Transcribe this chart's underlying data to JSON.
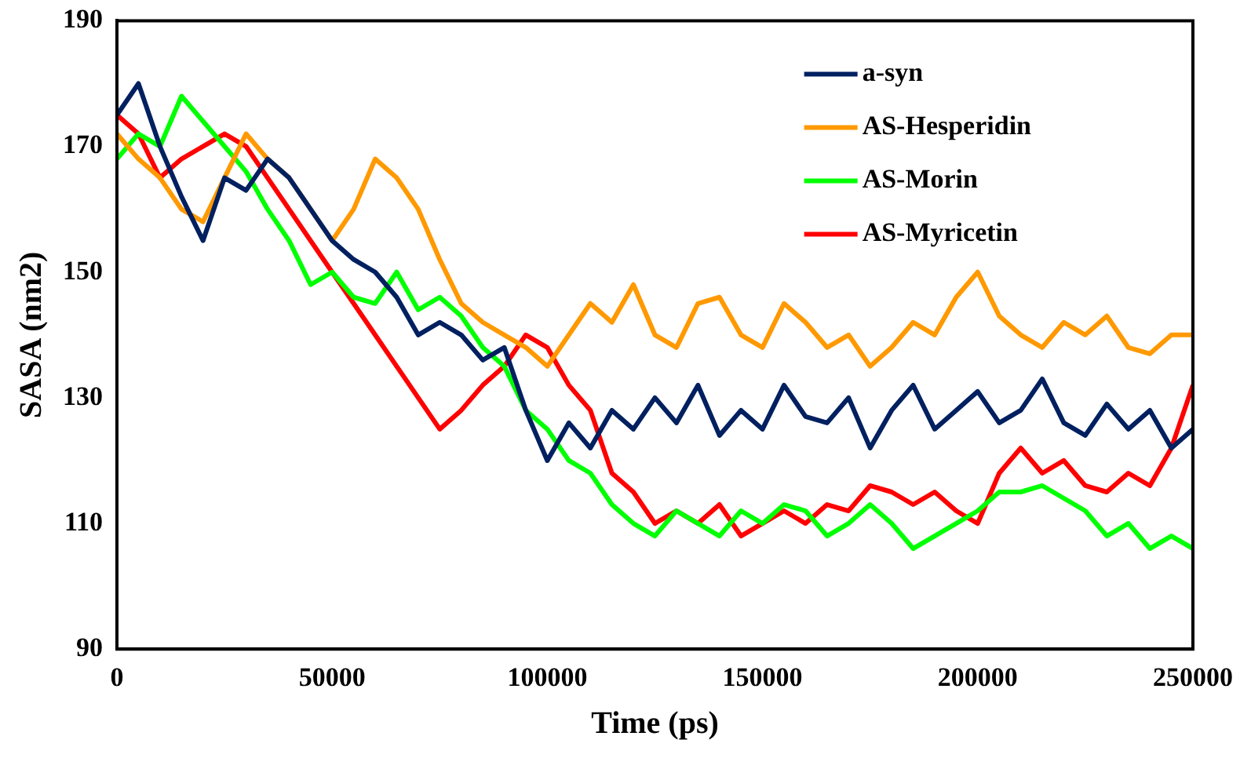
{
  "chart_data": {
    "type": "line",
    "xlabel": "Time (ps)",
    "ylabel": "SASA (nm2)",
    "x": [
      0,
      5000,
      10000,
      15000,
      20000,
      25000,
      30000,
      35000,
      40000,
      45000,
      50000,
      55000,
      60000,
      65000,
      70000,
      75000,
      80000,
      85000,
      90000,
      95000,
      100000,
      105000,
      110000,
      115000,
      120000,
      125000,
      130000,
      135000,
      140000,
      145000,
      150000,
      155000,
      160000,
      165000,
      170000,
      175000,
      180000,
      185000,
      190000,
      195000,
      200000,
      205000,
      210000,
      215000,
      220000,
      225000,
      230000,
      235000,
      240000,
      245000,
      250000
    ],
    "series": [
      {
        "name": "a-syn",
        "color": "#002060",
        "values": [
          175,
          180,
          170,
          162,
          155,
          165,
          163,
          168,
          165,
          160,
          155,
          152,
          150,
          146,
          140,
          142,
          140,
          136,
          138,
          128,
          120,
          126,
          122,
          128,
          125,
          130,
          126,
          132,
          124,
          128,
          125,
          132,
          127,
          126,
          130,
          122,
          128,
          132,
          125,
          128,
          131,
          126,
          128,
          133,
          126,
          124,
          129,
          125,
          128,
          122,
          125
        ]
      },
      {
        "name": "AS-Hesperidin",
        "color": "#ff9900",
        "values": [
          172,
          168,
          165,
          160,
          158,
          165,
          172,
          168,
          165,
          160,
          155,
          160,
          168,
          165,
          160,
          152,
          145,
          142,
          140,
          138,
          135,
          140,
          145,
          142,
          148,
          140,
          138,
          145,
          146,
          140,
          138,
          145,
          142,
          138,
          140,
          135,
          138,
          142,
          140,
          146,
          150,
          143,
          140,
          138,
          142,
          140,
          143,
          138,
          137,
          140,
          140
        ]
      },
      {
        "name": "AS-Morin",
        "color": "#00ff00",
        "values": [
          168,
          172,
          170,
          178,
          174,
          170,
          166,
          160,
          155,
          148,
          150,
          146,
          145,
          150,
          144,
          146,
          143,
          138,
          135,
          128,
          125,
          120,
          118,
          113,
          110,
          108,
          112,
          110,
          108,
          112,
          110,
          113,
          112,
          108,
          110,
          113,
          110,
          106,
          108,
          110,
          112,
          115,
          115,
          116,
          114,
          112,
          108,
          110,
          106,
          108,
          106
        ]
      },
      {
        "name": "AS-Myricetin",
        "color": "#ff0000",
        "values": [
          175,
          172,
          165,
          168,
          170,
          172,
          170,
          165,
          160,
          155,
          150,
          145,
          140,
          135,
          130,
          125,
          128,
          132,
          135,
          140,
          138,
          132,
          128,
          118,
          115,
          110,
          112,
          110,
          113,
          108,
          110,
          112,
          110,
          113,
          112,
          116,
          115,
          113,
          115,
          112,
          110,
          118,
          122,
          118,
          120,
          116,
          115,
          118,
          116,
          122,
          132
        ]
      }
    ],
    "xlim": [
      0,
      250000
    ],
    "xticks": [
      0,
      50000,
      100000,
      150000,
      200000,
      250000
    ],
    "ylim": [
      90,
      190
    ],
    "yticks": [
      90,
      110,
      130,
      150,
      170,
      190
    ],
    "grid": false,
    "legend": "top right",
    "marker": "none",
    "line_style": "solid"
  }
}
